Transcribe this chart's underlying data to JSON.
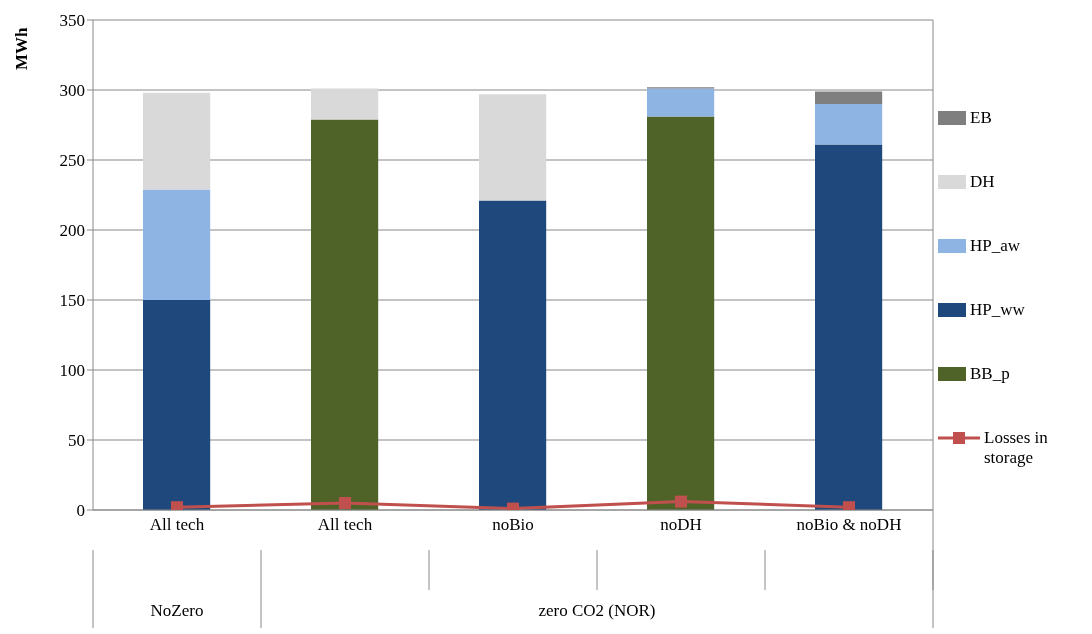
{
  "chart_data": {
    "type": "bar",
    "stacked": true,
    "ylabel": "MWh",
    "categories": [
      "All tech",
      "All tech",
      "noBio",
      "noDH",
      "noBio & noDH"
    ],
    "annotations": [
      "NoZero",
      "zero CO2 (NOR)"
    ],
    "ylim": [
      0,
      350
    ],
    "yticks": [
      0,
      50,
      100,
      150,
      200,
      250,
      300,
      350
    ],
    "grid": "y",
    "legend": "right",
    "series": [
      {
        "name": "BB_p",
        "color": "#4f6228",
        "values": [
          0,
          279,
          0,
          281,
          0
        ]
      },
      {
        "name": "HP_ww",
        "color": "#1f497d",
        "values": [
          150,
          0,
          221,
          0,
          261
        ]
      },
      {
        "name": "HP_aw",
        "color": "#8eb4e3",
        "values": [
          79,
          0,
          0,
          20,
          29
        ]
      },
      {
        "name": "DH",
        "color": "#d9d9d9",
        "values": [
          69,
          22,
          76,
          0,
          0
        ]
      },
      {
        "name": "EB",
        "color": "#7f7f7f",
        "values": [
          0,
          0,
          0,
          1,
          9
        ]
      },
      {
        "name": "Losses in storage",
        "type": "line",
        "color": "#c0504d",
        "marker": "square",
        "values": [
          2,
          5,
          1,
          6,
          2
        ]
      }
    ]
  }
}
